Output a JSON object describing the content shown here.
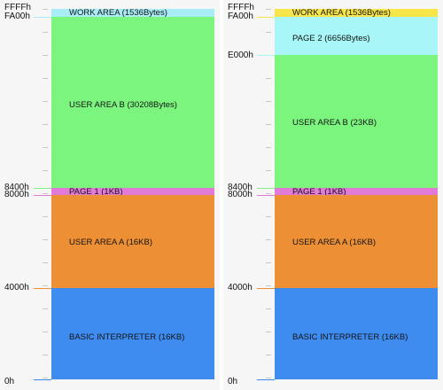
{
  "colors": {
    "work_area_left": "#a8ecf5",
    "work_area_right": "#f7e64a",
    "page2": "#a8f6f7",
    "user_area_b": "#7cf57f",
    "page1": "#e27ad7",
    "user_area_a": "#ed8f34",
    "basic_interpreter": "#3f8cf0",
    "tick": "#c8c8c8",
    "background": "#f6f6f6"
  },
  "left_map": {
    "addresses": {
      "ffff": "FFFFh",
      "fa00": "FA00h",
      "8400": "8400h",
      "8000": "8000h",
      "4000": "4000h",
      "zero": "0h"
    },
    "regions": {
      "work_area": "WORK AREA (1536Bytes)",
      "user_area_b": "USER AREA B (30208Bytes)",
      "page1": "PAGE 1 (1KB)",
      "user_area_a": "USER AREA A (16KB)",
      "basic": "BASIC INTERPRETER (16KB)"
    }
  },
  "right_map": {
    "addresses": {
      "ffff": "FFFFh",
      "fa00": "FA00h",
      "e000": "E000h",
      "8400": "8400h",
      "8000": "8000h",
      "4000": "4000h",
      "zero": "0h"
    },
    "regions": {
      "work_area": "WORK AREA (1536Bytes)",
      "page2": "PAGE 2 (6656Bytes)",
      "user_area_b": "USER AREA B (23KB)",
      "page1": "PAGE 1 (1KB)",
      "user_area_a": "USER AREA A (16KB)",
      "basic": "BASIC INTERPRETER (16KB)"
    }
  }
}
